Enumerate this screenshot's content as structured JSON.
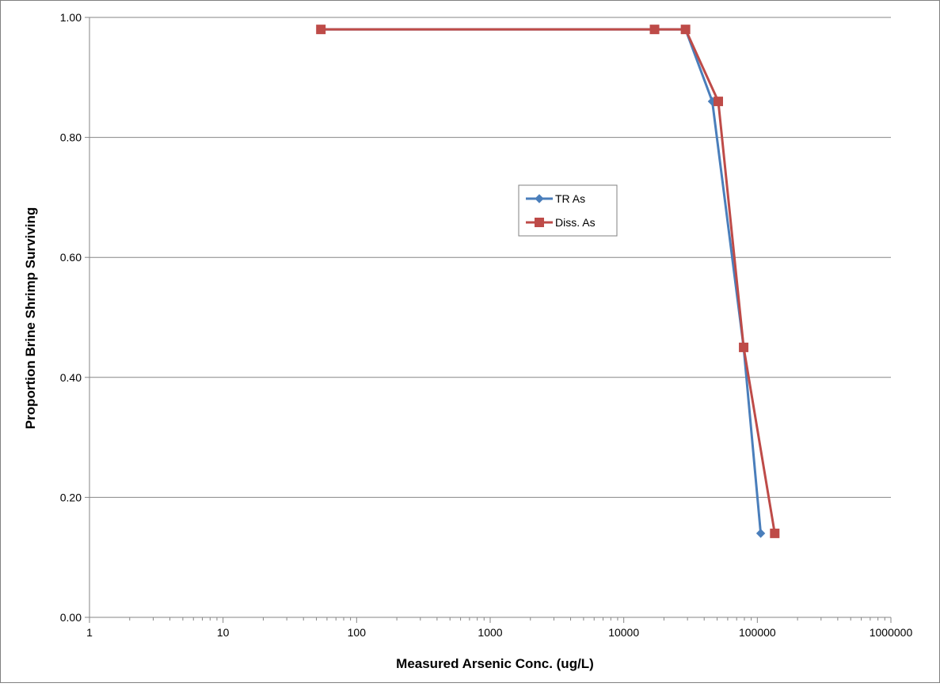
{
  "chart_data": {
    "type": "line",
    "xscale": "log",
    "xlim": [
      1,
      1000000
    ],
    "ylim": [
      0,
      1
    ],
    "xticks": [
      1,
      10,
      100,
      1000,
      10000,
      100000,
      1000000
    ],
    "xtick_labels": [
      "1",
      "10",
      "100",
      "1000",
      "10000",
      "100000",
      "1000000"
    ],
    "yticks": [
      0,
      0.2,
      0.4,
      0.6,
      0.8,
      1.0
    ],
    "ytick_labels": [
      "0.00",
      "0.20",
      "0.40",
      "0.60",
      "0.80",
      "1.00"
    ],
    "xlabel": "Measured Arsenic Conc. (ug/L)",
    "ylabel": "Proportion Brine Shrimp Surviving",
    "grid": "horizontal",
    "legend_position": "center",
    "series": [
      {
        "name": "TR As",
        "color": "#4a7ebb",
        "marker": "diamond",
        "x": [
          54,
          17000,
          29000,
          46000,
          79000,
          106000
        ],
        "y": [
          0.98,
          0.98,
          0.98,
          0.86,
          0.45,
          0.14
        ]
      },
      {
        "name": "Diss. As",
        "color": "#be4b48",
        "marker": "square",
        "x": [
          54,
          17000,
          29000,
          51000,
          79000,
          135000
        ],
        "y": [
          0.98,
          0.98,
          0.98,
          0.86,
          0.45,
          0.14
        ]
      }
    ]
  }
}
